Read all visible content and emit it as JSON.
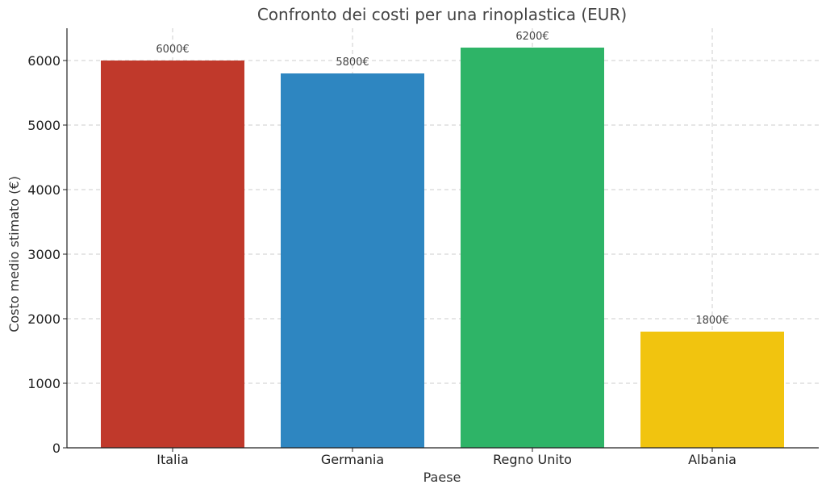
{
  "chart_data": {
    "type": "bar",
    "title": "Confronto dei costi per una rinoplastica (EUR)",
    "xlabel": "Paese",
    "ylabel": "Costo medio stimato (€)",
    "categories": [
      "Italia",
      "Germania",
      "Regno Unito",
      "Albania"
    ],
    "values": [
      6000,
      5800,
      6200,
      1800
    ],
    "value_labels": [
      "6000€",
      "5800€",
      "6200€",
      "1800€"
    ],
    "colors": [
      "#c0392b",
      "#2e86c1",
      "#2eb467",
      "#f1c40f"
    ],
    "ylim": [
      0,
      6500
    ],
    "yticks": [
      0,
      1000,
      2000,
      3000,
      4000,
      5000,
      6000
    ],
    "grid": true
  }
}
